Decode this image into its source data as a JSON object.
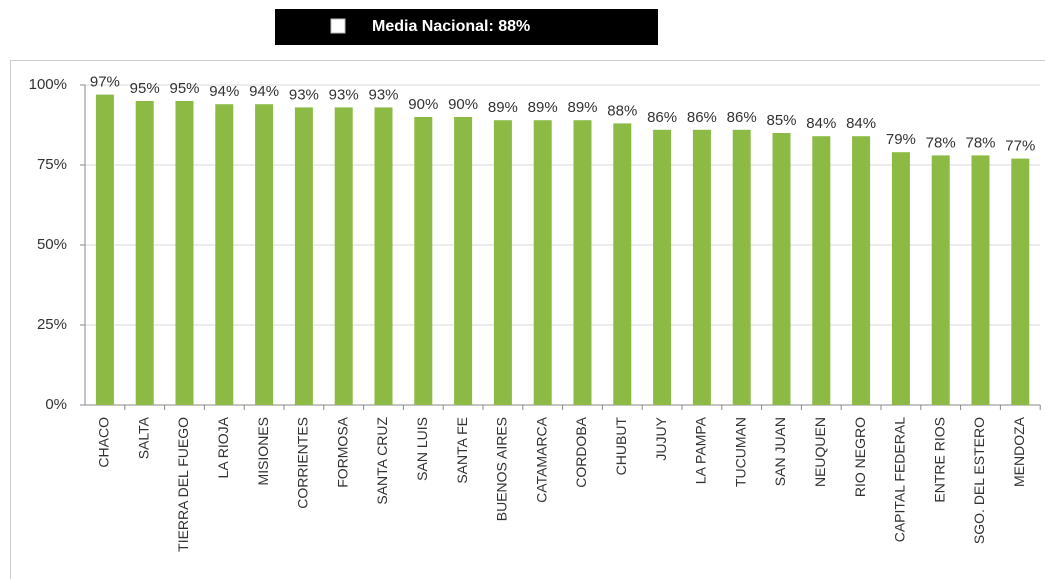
{
  "chart_data": {
    "type": "bar",
    "legend_text": "Media Nacional: 88%",
    "categories": [
      "CHACO",
      "SALTA",
      "TIERRA DEL FUEGO",
      "LA RIOJA",
      "MISIONES",
      "CORRIENTES",
      "FORMOSA",
      "SANTA CRUZ",
      "SAN LUIS",
      "SANTA FE",
      "BUENOS AIRES",
      "CATAMARCA",
      "CORDOBA",
      "CHUBUT",
      "JUJUY",
      "LA PAMPA",
      "TUCUMAN",
      "SAN JUAN",
      "NEUQUEN",
      "RIO NEGRO",
      "CAPITAL FEDERAL",
      "ENTRE RIOS",
      "SGO. DEL ESTERO",
      "MENDOZA"
    ],
    "values": [
      97,
      95,
      95,
      94,
      94,
      93,
      93,
      93,
      90,
      90,
      89,
      89,
      89,
      88,
      86,
      86,
      86,
      85,
      84,
      84,
      79,
      78,
      78,
      77
    ],
    "value_labels": [
      "97%",
      "95%",
      "95%",
      "94%",
      "94%",
      "93%",
      "93%",
      "93%",
      "90%",
      "90%",
      "89%",
      "89%",
      "89%",
      "88%",
      "86%",
      "86%",
      "86%",
      "85%",
      "84%",
      "84%",
      "79%",
      "78%",
      "78%",
      "77%"
    ],
    "color": "#8dba45",
    "ylim": [
      0,
      100
    ],
    "yticks": [
      {
        "value": 0,
        "label": "0%"
      },
      {
        "value": 25,
        "label": "25%"
      },
      {
        "value": 50,
        "label": "50%"
      },
      {
        "value": 75,
        "label": "75%"
      },
      {
        "value": 100,
        "label": "100%"
      }
    ],
    "grid": true
  }
}
